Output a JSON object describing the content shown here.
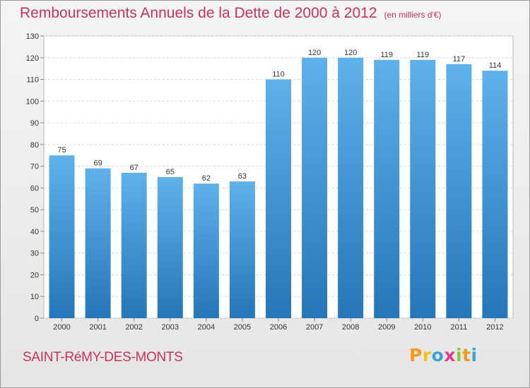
{
  "header": {
    "title": "Remboursements Annuels de la Dette de 2000 à 2012",
    "unit": "(en milliers d'€)"
  },
  "footer": {
    "commune": "SAINT-RéMY-DES-MONTS",
    "logo_text": "Proxiti"
  },
  "colors": {
    "title": "#c8325a",
    "bar_top": "#5fb1ea",
    "bar_bottom": "#2576b8"
  },
  "chart_data": {
    "type": "bar",
    "title": "Remboursements Annuels de la Dette de 2000 à 2012",
    "xlabel": "",
    "ylabel": "",
    "categories": [
      "2000",
      "2001",
      "2002",
      "2003",
      "2004",
      "2005",
      "2006",
      "2007",
      "2008",
      "2009",
      "2010",
      "2011",
      "2012"
    ],
    "values": [
      75,
      69,
      67,
      65,
      62,
      63,
      110,
      120,
      120,
      119,
      119,
      117,
      114
    ],
    "ylim": [
      0,
      130
    ],
    "yticks": [
      0,
      10,
      20,
      30,
      40,
      50,
      60,
      70,
      80,
      90,
      100,
      110,
      120,
      130
    ],
    "grid": true,
    "legend": "none"
  }
}
